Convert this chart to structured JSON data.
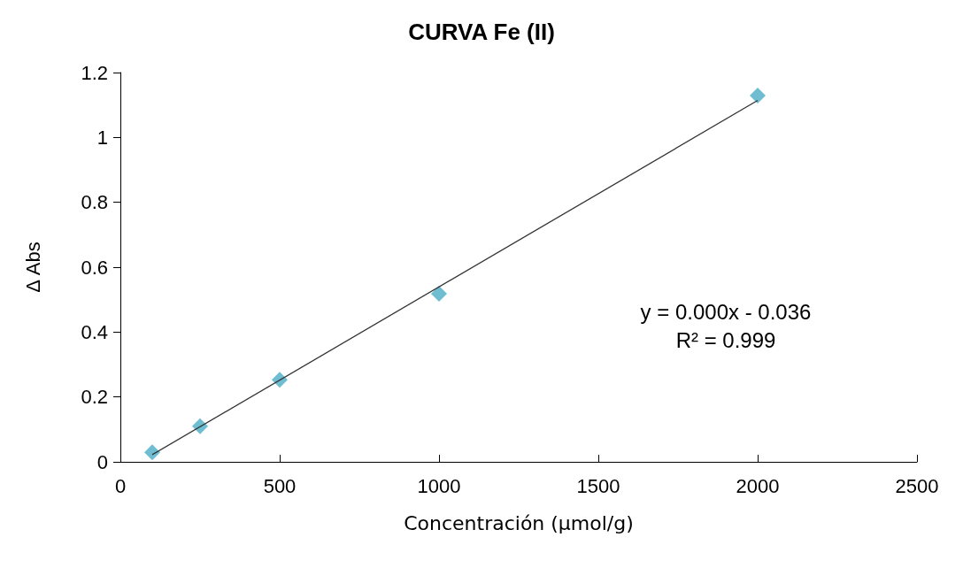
{
  "chart_data": {
    "type": "scatter",
    "title": "CURVA Fe (II)",
    "xlabel": "Concentración (µmol/g)",
    "ylabel": "Δ Abs",
    "annotations": [
      "y = 0.000x - 0.036",
      "R² = 0.999"
    ],
    "x": [
      100,
      250,
      500,
      1000,
      2000
    ],
    "series": [
      {
        "color": "#4bacc6",
        "marker": "diamond",
        "values": [
          0.029,
          0.11,
          0.253,
          0.518,
          1.129
        ]
      },
      {
        "type": "line",
        "color": "#333333",
        "marker": "none",
        "x": [
          100,
          2000
        ],
        "values": [
          0.022,
          1.114
        ]
      }
    ],
    "xlim": [
      0,
      2500
    ],
    "xticks": [
      0,
      500,
      1000,
      1500,
      2000,
      2500
    ],
    "ylim": [
      0,
      1.2
    ],
    "yticks": [
      0,
      0.2,
      0.4,
      0.6,
      0.8,
      1,
      1.2
    ],
    "grid": false
  }
}
